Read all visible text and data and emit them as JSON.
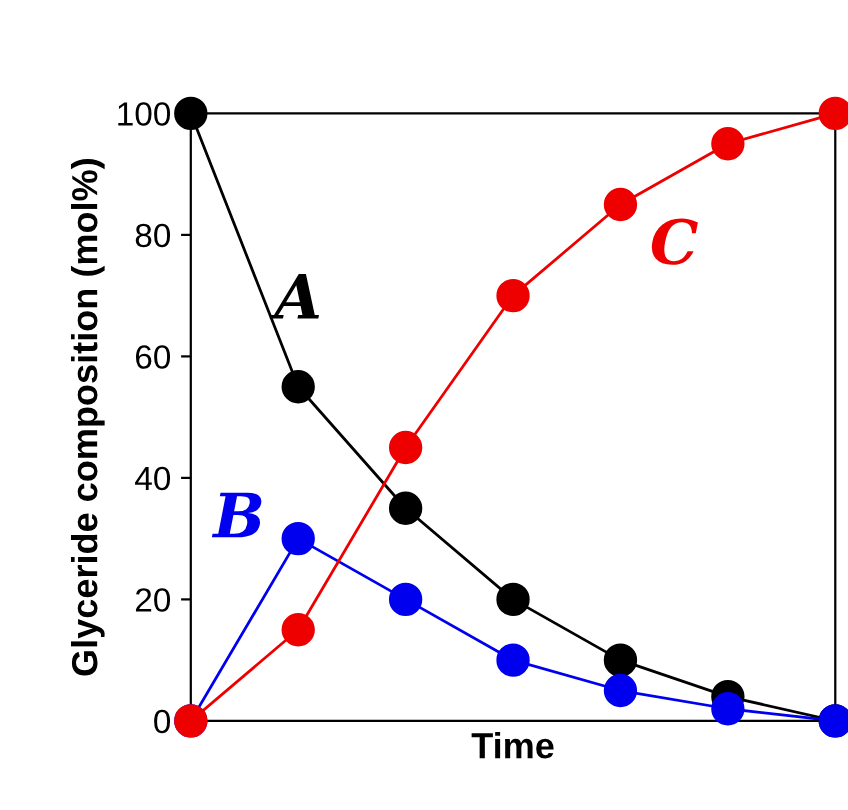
{
  "chart_data": {
    "type": "line",
    "xlabel": "Time",
    "ylabel": "Glyceride composition (mol%)",
    "categories": [
      null,
      null,
      null,
      null,
      null,
      null,
      null
    ],
    "series": [
      {
        "name": "A",
        "color": "#000000",
        "values": [
          100,
          55,
          35,
          20,
          10,
          4,
          0
        ]
      },
      {
        "name": "B",
        "color": "#0000ee",
        "values": [
          0,
          30,
          20,
          10,
          5,
          2,
          0
        ]
      },
      {
        "name": "C",
        "color": "#ee0000",
        "values": [
          0,
          15,
          45,
          70,
          85,
          95,
          100
        ]
      }
    ],
    "ylim": [
      0,
      100
    ],
    "yticks": [
      0,
      20,
      40,
      60,
      80,
      100
    ],
    "tick_labels": "y",
    "marker": "circle",
    "line_style": "solid",
    "grid": false,
    "legend": false
  }
}
